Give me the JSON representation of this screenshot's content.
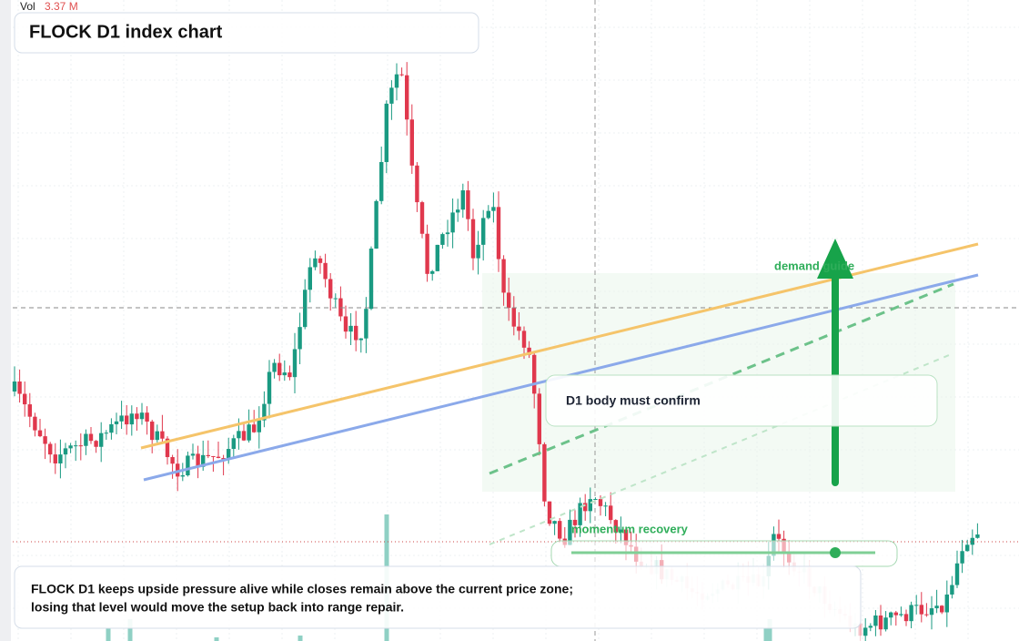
{
  "header": {
    "vol_label": "Vol",
    "vol_value": "3.37 M",
    "title": "FLOCK D1 index chart"
  },
  "annotations": {
    "guide": "demand guide",
    "confirm": "D1 body must confirm",
    "recovery": "momentum recovery"
  },
  "note": {
    "lines": [
      "FLOCK D1 keeps upside pressure alive while closes remain above the current price zone;",
      "losing that level would move the setup back into range repair."
    ]
  }
}
